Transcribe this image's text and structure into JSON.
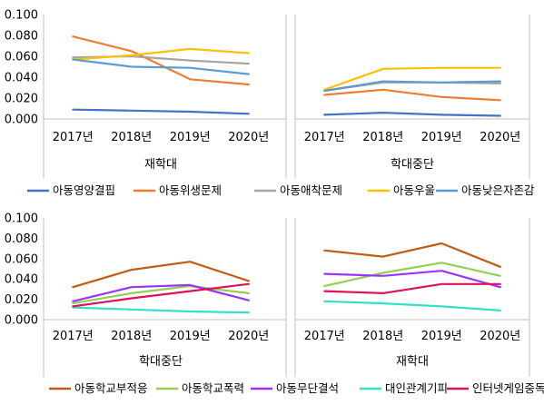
{
  "chart_data": [
    {
      "type": "line",
      "categories": [
        "2017년",
        "2018년",
        "2019년",
        "2020년"
      ],
      "ylim": [
        0,
        0.1
      ],
      "yticks": [
        "0.000",
        "0.020",
        "0.040",
        "0.060",
        "0.080",
        "0.100"
      ],
      "grid": false,
      "legend": "bottom",
      "panels": [
        {
          "group_label": "재학대",
          "series": [
            {
              "name": "아동영양결핍",
              "color": "#4472c4",
              "values": [
                0.009,
                0.008,
                0.007,
                0.005
              ]
            },
            {
              "name": "아동위생문제",
              "color": "#ed7d31",
              "values": [
                0.079,
                0.065,
                0.038,
                0.033
              ]
            },
            {
              "name": "아동애착문제",
              "color": "#a5a5a5",
              "values": [
                0.059,
                0.06,
                0.056,
                0.053
              ]
            },
            {
              "name": "아동우울",
              "color": "#ffc000",
              "values": [
                0.057,
                0.061,
                0.067,
                0.063
              ]
            },
            {
              "name": "아동낮은자존감",
              "color": "#5b9bd5",
              "values": [
                0.057,
                0.05,
                0.049,
                0.043
              ]
            }
          ]
        },
        {
          "group_label": "학대중단",
          "series": [
            {
              "name": "아동영양결핍",
              "color": "#4472c4",
              "values": [
                0.004,
                0.006,
                0.004,
                0.003
              ]
            },
            {
              "name": "아동위생문제",
              "color": "#ed7d31",
              "values": [
                0.023,
                0.028,
                0.021,
                0.018
              ]
            },
            {
              "name": "아동애착문제",
              "color": "#a5a5a5",
              "values": [
                0.027,
                0.035,
                0.035,
                0.034
              ]
            },
            {
              "name": "아동우울",
              "color": "#ffc000",
              "values": [
                0.028,
                0.048,
                0.049,
                0.049
              ]
            },
            {
              "name": "아동낮은자존감",
              "color": "#5b9bd5",
              "values": [
                0.027,
                0.036,
                0.035,
                0.036
              ]
            }
          ]
        }
      ]
    },
    {
      "type": "line",
      "categories": [
        "2017년",
        "2018년",
        "2019년",
        "2020년"
      ],
      "ylim": [
        0,
        0.1
      ],
      "yticks": [
        "0.000",
        "0.020",
        "0.040",
        "0.060",
        "0.080",
        "0.100"
      ],
      "grid": false,
      "legend": "bottom",
      "panels": [
        {
          "group_label": "학대중단",
          "series": [
            {
              "name": "아동학교부적응",
              "color": "#c55a11",
              "values": [
                0.032,
                0.049,
                0.057,
                0.038
              ]
            },
            {
              "name": "아동학교폭력",
              "color": "#92d050",
              "values": [
                0.016,
                0.026,
                0.033,
                0.026
              ]
            },
            {
              "name": "아동무단결석",
              "color": "#9933ff",
              "values": [
                0.018,
                0.032,
                0.034,
                0.019
              ]
            },
            {
              "name": "대인관계기피",
              "color": "#33e0c8",
              "values": [
                0.012,
                0.01,
                0.008,
                0.007
              ]
            },
            {
              "name": "인터넷게임중독",
              "color": "#e0105a",
              "values": [
                0.013,
                0.021,
                0.028,
                0.035
              ]
            }
          ]
        },
        {
          "group_label": "재학대",
          "series": [
            {
              "name": "아동학교부적응",
              "color": "#c55a11",
              "values": [
                0.068,
                0.062,
                0.075,
                0.052
              ]
            },
            {
              "name": "아동학교폭력",
              "color": "#92d050",
              "values": [
                0.033,
                0.046,
                0.056,
                0.043
              ]
            },
            {
              "name": "아동무단결석",
              "color": "#9933ff",
              "values": [
                0.045,
                0.043,
                0.048,
                0.032
              ]
            },
            {
              "name": "대인관계기피",
              "color": "#33e0c8",
              "values": [
                0.018,
                0.016,
                0.013,
                0.009
              ]
            },
            {
              "name": "인터넷게임중독",
              "color": "#e0105a",
              "values": [
                0.028,
                0.026,
                0.035,
                0.035
              ]
            }
          ]
        }
      ]
    }
  ]
}
